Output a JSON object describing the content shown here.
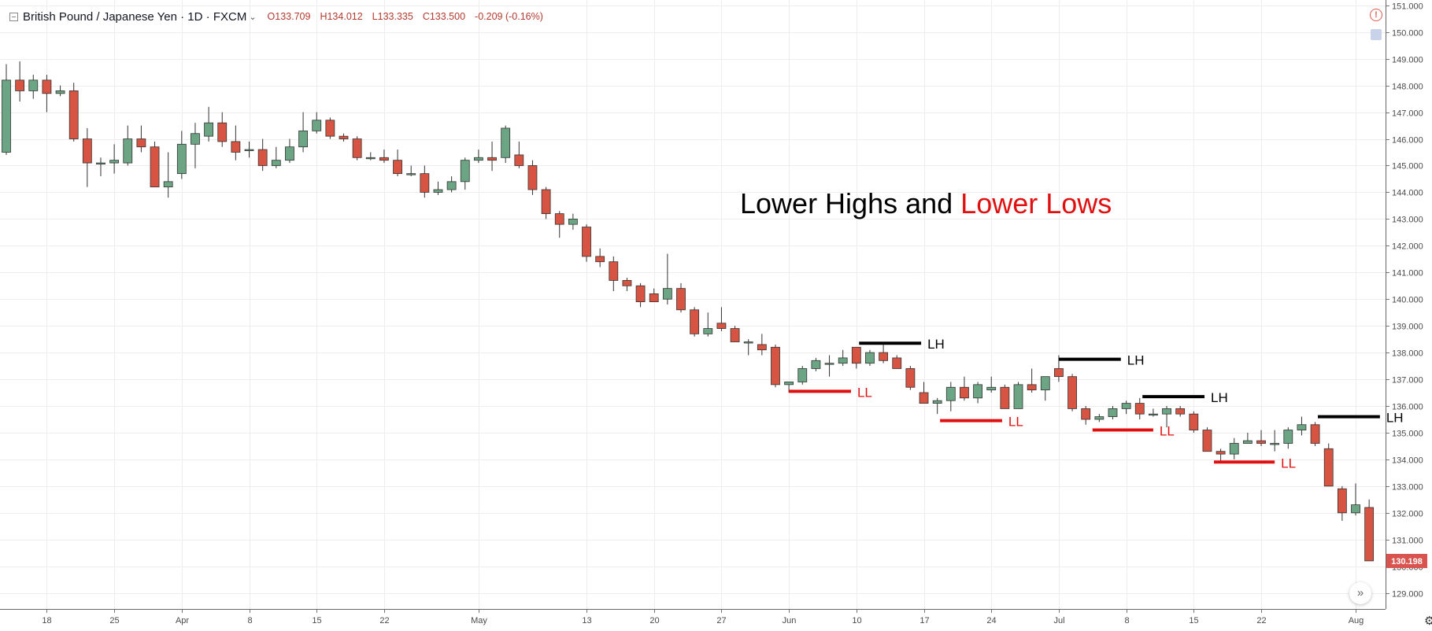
{
  "header": {
    "symbol_title": "British Pound / Japanese Yen · 1D · FXCM",
    "open_label": "O",
    "open": "133.709",
    "high_label": "H",
    "high": "134.012",
    "low_label": "L",
    "low": "133.335",
    "close_label": "C",
    "close": "133.500",
    "change": "-0.209 (-0.16%)"
  },
  "chart_data": {
    "type": "candlestick",
    "title": "Lower Highs and Lower Lows",
    "title_parts": [
      {
        "text": "Lower Highs and ",
        "color": "#000000"
      },
      {
        "text": "Lower Lows",
        "color": "#e01010"
      }
    ],
    "ylim": [
      128.4,
      151.2
    ],
    "y_ticks": [
      "129.000",
      "130.000",
      "131.000",
      "132.000",
      "133.000",
      "134.000",
      "135.000",
      "136.000",
      "137.000",
      "138.000",
      "139.000",
      "140.000",
      "141.000",
      "142.000",
      "143.000",
      "144.000",
      "145.000",
      "146.000",
      "147.000",
      "148.000",
      "149.000",
      "150.000",
      "151.000"
    ],
    "x_ticks": [
      {
        "i": 3,
        "label": "18"
      },
      {
        "i": 8,
        "label": "25"
      },
      {
        "i": 13,
        "label": "Apr"
      },
      {
        "i": 18,
        "label": "8"
      },
      {
        "i": 23,
        "label": "15"
      },
      {
        "i": 28,
        "label": "22"
      },
      {
        "i": 35,
        "label": "May"
      },
      {
        "i": 43,
        "label": "13"
      },
      {
        "i": 48,
        "label": "20"
      },
      {
        "i": 53,
        "label": "27"
      },
      {
        "i": 58,
        "label": "Jun"
      },
      {
        "i": 63,
        "label": "10"
      },
      {
        "i": 68,
        "label": "17"
      },
      {
        "i": 73,
        "label": "24"
      },
      {
        "i": 78,
        "label": "Jul"
      },
      {
        "i": 83,
        "label": "8"
      },
      {
        "i": 88,
        "label": "15"
      },
      {
        "i": 93,
        "label": "22"
      },
      {
        "i": 100,
        "label": "Aug"
      }
    ],
    "last_price": "130.198",
    "last_price_color": "#d9534f",
    "up_color": "#6ba583",
    "down_color": "#d75442",
    "candles": [
      [
        145.5,
        148.8,
        145.4,
        148.2
      ],
      [
        148.2,
        148.9,
        147.4,
        147.8
      ],
      [
        147.8,
        148.4,
        147.5,
        148.2
      ],
      [
        148.2,
        148.4,
        147.0,
        147.7
      ],
      [
        147.7,
        148.0,
        147.6,
        147.8
      ],
      [
        147.8,
        148.1,
        145.9,
        146.0
      ],
      [
        146.0,
        146.4,
        144.2,
        145.1
      ],
      [
        145.1,
        145.3,
        144.6,
        145.1
      ],
      [
        145.1,
        145.8,
        144.7,
        145.2
      ],
      [
        145.1,
        146.5,
        145.0,
        146.0
      ],
      [
        146.0,
        146.5,
        145.5,
        145.7
      ],
      [
        145.7,
        145.9,
        144.2,
        144.2
      ],
      [
        144.2,
        145.5,
        143.8,
        144.4
      ],
      [
        144.7,
        146.3,
        144.5,
        145.8
      ],
      [
        145.8,
        146.6,
        144.9,
        146.2
      ],
      [
        146.1,
        147.2,
        145.9,
        146.6
      ],
      [
        146.6,
        147.0,
        145.7,
        145.9
      ],
      [
        145.9,
        146.5,
        145.2,
        145.5
      ],
      [
        145.6,
        145.9,
        145.3,
        145.6
      ],
      [
        145.6,
        146.0,
        144.8,
        145.0
      ],
      [
        145.0,
        145.7,
        144.9,
        145.2
      ],
      [
        145.2,
        146.0,
        145.1,
        145.7
      ],
      [
        145.7,
        147.0,
        145.5,
        146.3
      ],
      [
        146.3,
        147.0,
        146.2,
        146.7
      ],
      [
        146.7,
        146.8,
        146.0,
        146.1
      ],
      [
        146.1,
        146.2,
        145.9,
        146.0
      ],
      [
        146.0,
        146.1,
        145.2,
        145.3
      ],
      [
        145.3,
        145.5,
        145.2,
        145.3
      ],
      [
        145.3,
        145.6,
        145.1,
        145.2
      ],
      [
        145.2,
        145.6,
        144.6,
        144.7
      ],
      [
        144.7,
        145.0,
        144.6,
        144.7
      ],
      [
        144.7,
        145.0,
        143.8,
        144.0
      ],
      [
        144.0,
        144.4,
        143.9,
        144.1
      ],
      [
        144.1,
        144.6,
        144.0,
        144.4
      ],
      [
        144.4,
        145.3,
        144.1,
        145.2
      ],
      [
        145.2,
        145.6,
        145.1,
        145.3
      ],
      [
        145.3,
        145.9,
        144.8,
        145.2
      ],
      [
        145.3,
        146.5,
        145.1,
        146.4
      ],
      [
        145.4,
        145.9,
        144.9,
        145.0
      ],
      [
        145.0,
        145.2,
        143.9,
        144.1
      ],
      [
        144.1,
        144.2,
        143.0,
        143.2
      ],
      [
        143.2,
        143.3,
        142.3,
        142.8
      ],
      [
        142.8,
        143.2,
        142.6,
        143.0
      ],
      [
        142.7,
        142.8,
        141.4,
        141.6
      ],
      [
        141.6,
        141.9,
        141.2,
        141.4
      ],
      [
        141.4,
        141.6,
        140.3,
        140.7
      ],
      [
        140.7,
        140.8,
        140.3,
        140.5
      ],
      [
        140.5,
        140.6,
        139.7,
        139.9
      ],
      [
        140.2,
        140.4,
        139.9,
        139.9
      ],
      [
        140.0,
        141.7,
        139.8,
        140.4
      ],
      [
        140.4,
        140.6,
        139.5,
        139.6
      ],
      [
        139.6,
        139.7,
        138.6,
        138.7
      ],
      [
        138.7,
        139.5,
        138.6,
        138.9
      ],
      [
        139.1,
        139.7,
        138.8,
        138.9
      ],
      [
        138.9,
        139.0,
        138.4,
        138.4
      ],
      [
        138.4,
        138.5,
        137.9,
        138.4
      ],
      [
        138.3,
        138.7,
        137.9,
        138.1
      ],
      [
        138.2,
        138.3,
        136.7,
        136.8
      ],
      [
        136.8,
        136.9,
        136.5,
        136.9
      ],
      [
        136.9,
        137.5,
        136.8,
        137.4
      ],
      [
        137.4,
        137.8,
        137.3,
        137.7
      ],
      [
        137.6,
        137.9,
        137.1,
        137.6
      ],
      [
        137.6,
        138.1,
        137.5,
        137.8
      ],
      [
        138.2,
        138.2,
        137.4,
        137.6
      ],
      [
        137.6,
        138.1,
        137.5,
        138.0
      ],
      [
        138.0,
        138.3,
        137.6,
        137.7
      ],
      [
        137.8,
        137.9,
        137.4,
        137.4
      ],
      [
        137.4,
        137.5,
        136.6,
        136.7
      ],
      [
        136.5,
        136.9,
        136.1,
        136.1
      ],
      [
        136.1,
        136.3,
        135.7,
        136.2
      ],
      [
        136.2,
        136.9,
        135.8,
        136.7
      ],
      [
        136.7,
        137.1,
        136.2,
        136.3
      ],
      [
        136.3,
        136.9,
        136.1,
        136.8
      ],
      [
        136.6,
        137.1,
        136.5,
        136.7
      ],
      [
        136.7,
        136.8,
        135.9,
        135.9
      ],
      [
        135.9,
        136.9,
        135.9,
        136.8
      ],
      [
        136.8,
        137.4,
        136.5,
        136.6
      ],
      [
        136.6,
        137.1,
        136.2,
        137.1
      ],
      [
        137.4,
        137.9,
        136.9,
        137.1
      ],
      [
        137.1,
        137.2,
        135.8,
        135.9
      ],
      [
        135.9,
        136.0,
        135.3,
        135.5
      ],
      [
        135.5,
        135.7,
        135.4,
        135.6
      ],
      [
        135.6,
        136.0,
        135.5,
        135.9
      ],
      [
        135.9,
        136.2,
        135.7,
        136.1
      ],
      [
        136.1,
        136.3,
        135.5,
        135.7
      ],
      [
        135.7,
        135.9,
        135.6,
        135.7
      ],
      [
        135.7,
        136.0,
        135.2,
        135.9
      ],
      [
        135.9,
        136.0,
        135.6,
        135.7
      ],
      [
        135.7,
        135.8,
        135.0,
        135.1
      ],
      [
        135.1,
        135.2,
        134.3,
        134.3
      ],
      [
        134.3,
        134.4,
        133.9,
        134.2
      ],
      [
        134.2,
        134.8,
        134.0,
        134.6
      ],
      [
        134.6,
        135.0,
        134.6,
        134.7
      ],
      [
        134.7,
        135.1,
        134.5,
        134.6
      ],
      [
        134.6,
        135.1,
        134.3,
        134.6
      ],
      [
        134.6,
        135.2,
        134.4,
        135.1
      ],
      [
        135.1,
        135.6,
        134.9,
        135.3
      ],
      [
        135.3,
        135.4,
        134.5,
        134.6
      ],
      [
        134.4,
        134.6,
        133.0,
        133.0
      ],
      [
        132.9,
        133.0,
        131.7,
        132.0
      ],
      [
        132.0,
        133.1,
        131.9,
        132.3
      ],
      [
        132.2,
        132.5,
        130.2,
        130.2
      ]
    ],
    "annotations": [
      {
        "type": "LH",
        "label": "LH",
        "from": 63.2,
        "to": 67.8,
        "price": 138.35
      },
      {
        "type": "LH",
        "label": "LH",
        "from": 78.0,
        "to": 82.6,
        "price": 137.75
      },
      {
        "type": "LH",
        "label": "LH",
        "from": 84.2,
        "to": 88.8,
        "price": 136.35
      },
      {
        "type": "LH",
        "label": "LH",
        "from": 97.2,
        "to": 101.8,
        "price": 135.6
      },
      {
        "type": "LL",
        "label": "LL",
        "from": 58.0,
        "to": 62.6,
        "price": 136.55
      },
      {
        "type": "LL",
        "label": "LL",
        "from": 69.2,
        "to": 73.8,
        "price": 135.45
      },
      {
        "type": "LL",
        "label": "LL",
        "from": 80.5,
        "to": 85.0,
        "price": 135.1
      },
      {
        "type": "LL",
        "label": "LL",
        "from": 89.5,
        "to": 94.0,
        "price": 133.9
      }
    ]
  }
}
